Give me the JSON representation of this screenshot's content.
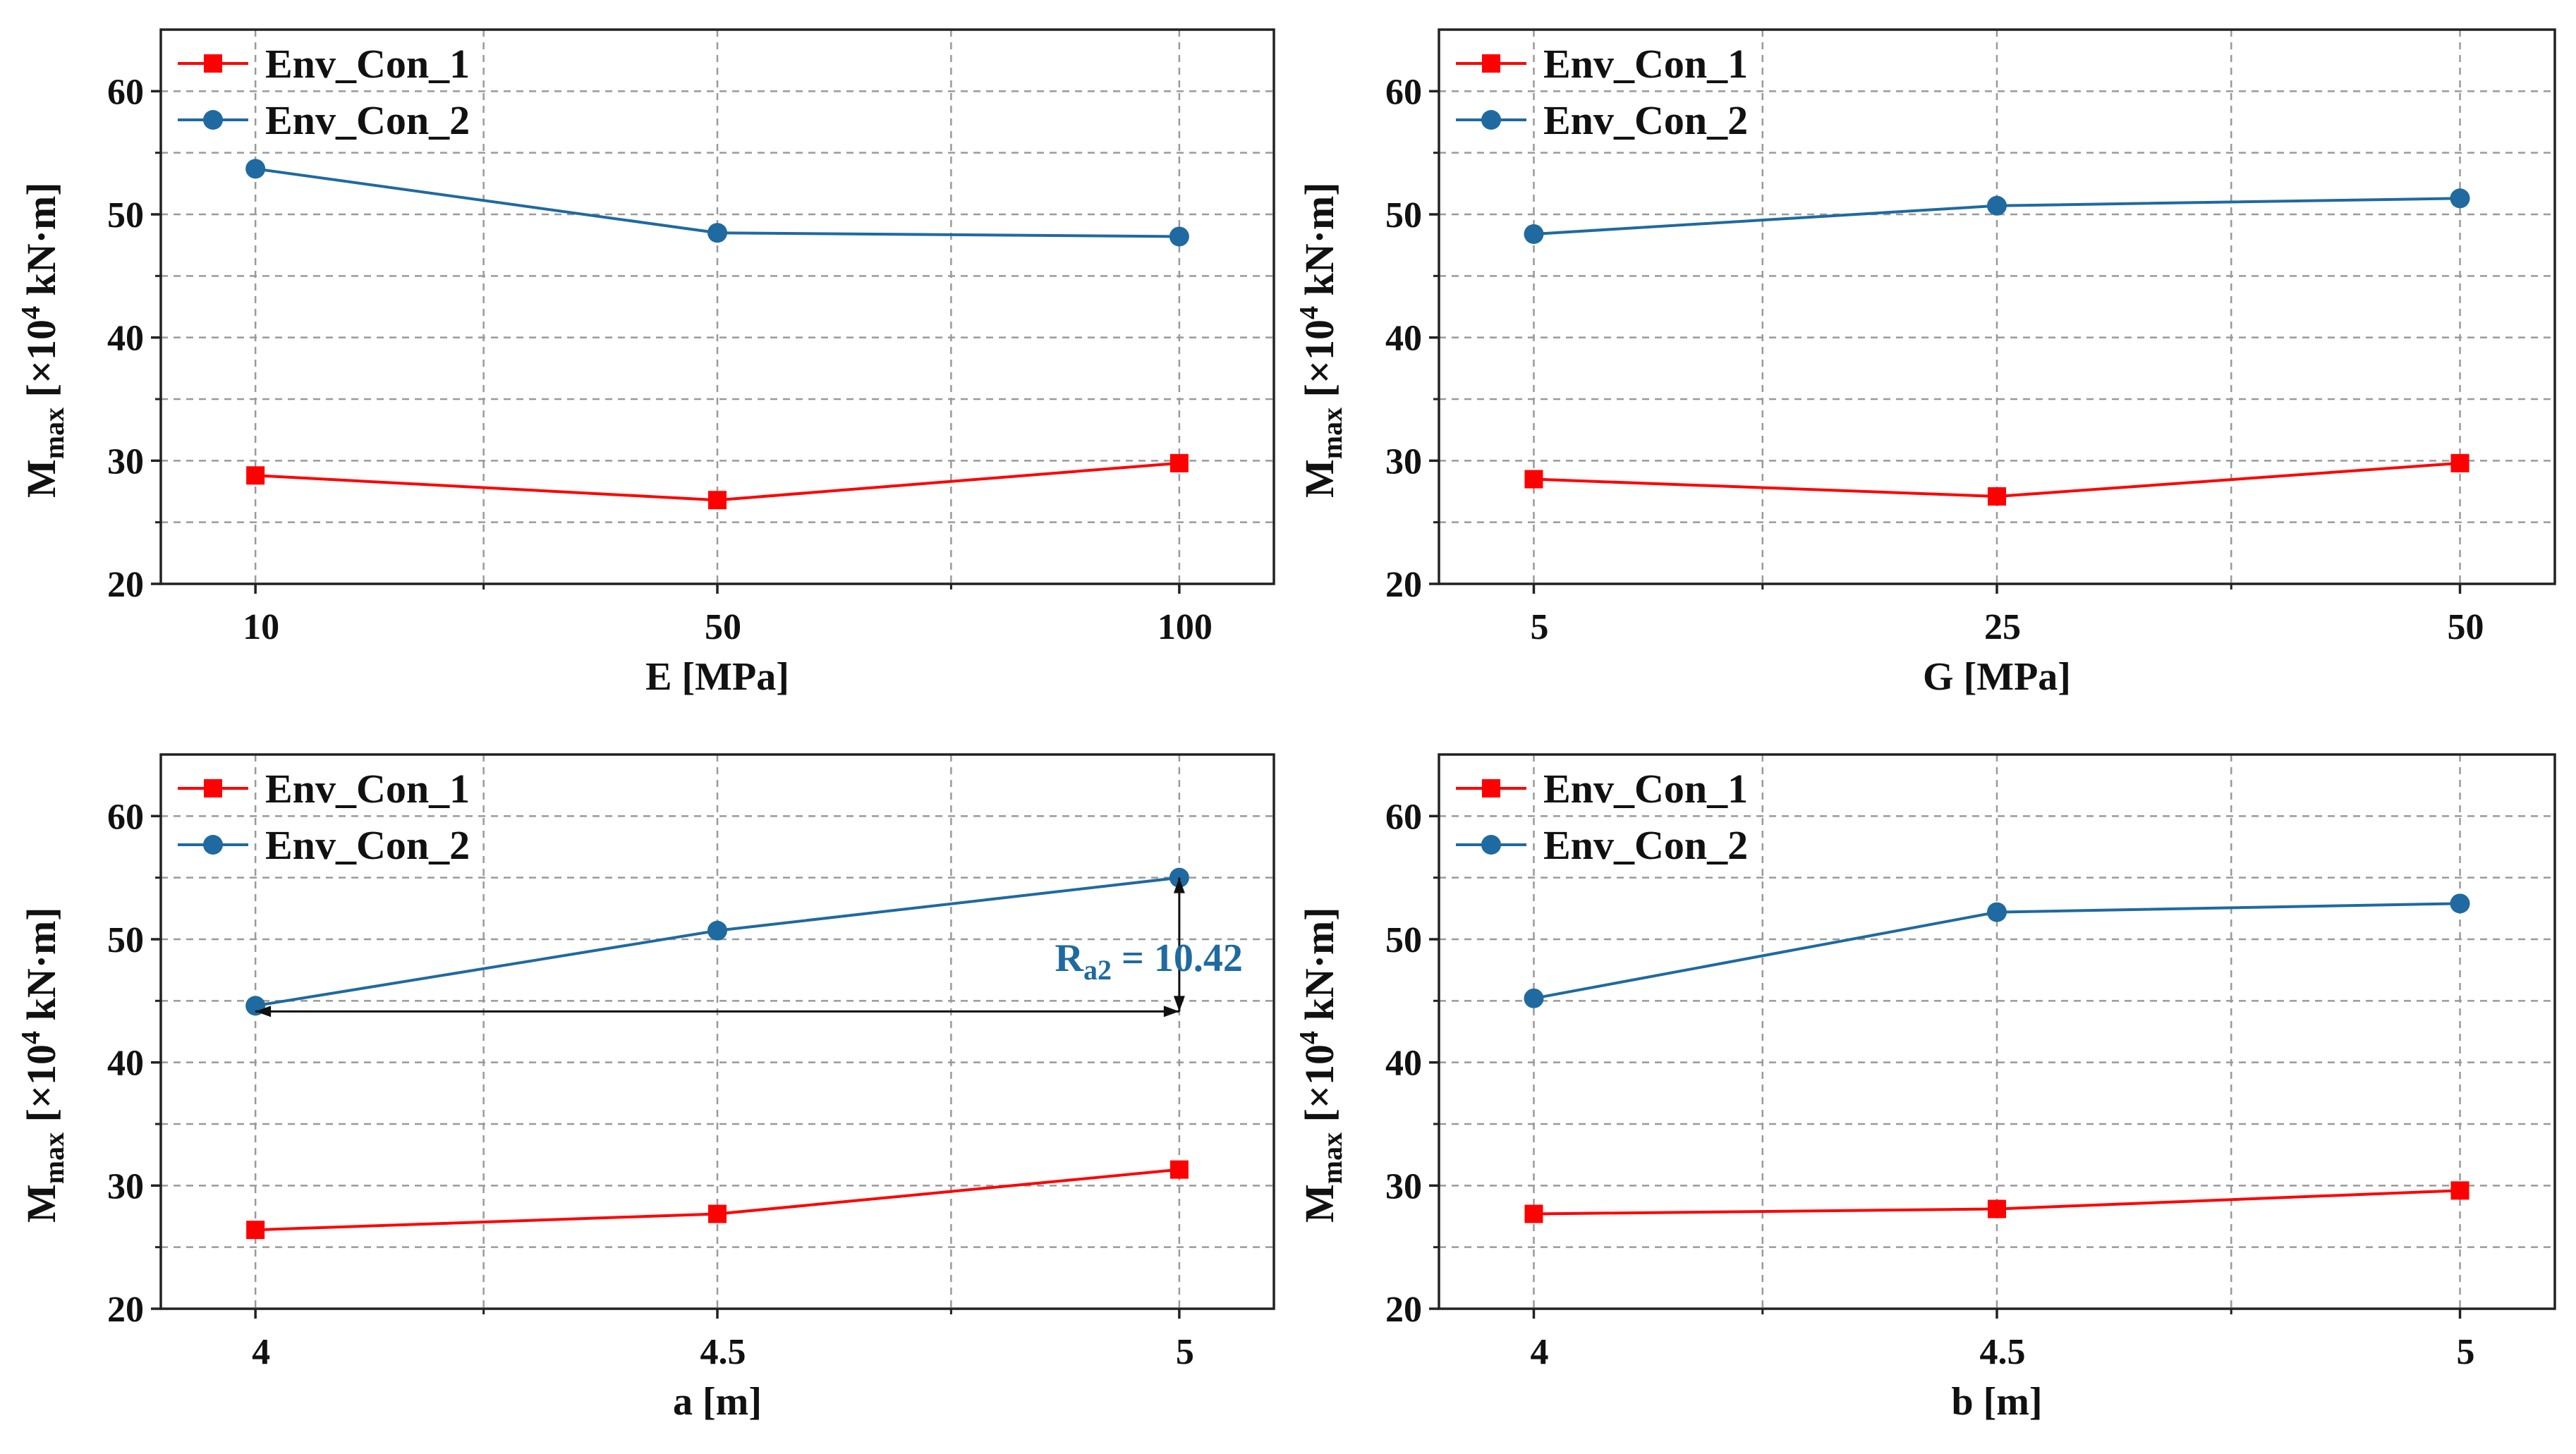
{
  "colors": {
    "series1": "#ff0000",
    "series2": "#1f6aa0",
    "grid": "#9a9a9a",
    "frame": "#222222",
    "annotation_arrow": "#111111"
  },
  "y_axis_label": {
    "base": "M",
    "subscript": "max",
    "bracket_open": "[×10",
    "superscript": "4",
    "unit_rest": " kN·m]"
  },
  "chart_data": [
    {
      "type": "line",
      "categories": [
        "10",
        "50",
        "100"
      ],
      "xlabel": "E [MPa]",
      "ylim": [
        20,
        65
      ],
      "yticks": [
        "20",
        "30",
        "40",
        "50",
        "60"
      ],
      "grid": true,
      "legend": "top-left",
      "series": [
        {
          "name": "Env_Con_1",
          "marker": "square",
          "values": [
            28.8,
            26.8,
            29.8
          ]
        },
        {
          "name": "Env_Con_2",
          "marker": "circle",
          "values": [
            53.7,
            48.5,
            48.2
          ]
        }
      ]
    },
    {
      "type": "line",
      "categories": [
        "5",
        "25",
        "50"
      ],
      "xlabel": "G [MPa]",
      "ylim": [
        20,
        65
      ],
      "yticks": [
        "20",
        "30",
        "40",
        "50",
        "60"
      ],
      "grid": true,
      "legend": "top-left",
      "series": [
        {
          "name": "Env_Con_1",
          "marker": "square",
          "values": [
            28.5,
            27.1,
            29.8
          ]
        },
        {
          "name": "Env_Con_2",
          "marker": "circle",
          "values": [
            48.4,
            50.7,
            51.3
          ]
        }
      ]
    },
    {
      "type": "line",
      "categories": [
        "4",
        "4.5",
        "5"
      ],
      "xlabel": "a [m]",
      "ylim": [
        20,
        65
      ],
      "yticks": [
        "20",
        "30",
        "40",
        "50",
        "60"
      ],
      "grid": true,
      "legend": "top-left",
      "series": [
        {
          "name": "Env_Con_1",
          "marker": "square",
          "values": [
            26.4,
            27.7,
            31.3
          ]
        },
        {
          "name": "Env_Con_2",
          "marker": "circle",
          "values": [
            44.6,
            50.7,
            55.0
          ]
        }
      ],
      "annotation": {
        "base": "R",
        "subscript": "a2",
        "rest": " = 10.42",
        "arrow_from_category": 0,
        "arrow_to_category": 2,
        "low_value": 44.6,
        "high_value": 55.0
      }
    },
    {
      "type": "line",
      "categories": [
        "4",
        "4.5",
        "5"
      ],
      "xlabel": "b [m]",
      "ylim": [
        20,
        65
      ],
      "yticks": [
        "20",
        "30",
        "40",
        "50",
        "60"
      ],
      "grid": true,
      "legend": "top-left",
      "series": [
        {
          "name": "Env_Con_1",
          "marker": "square",
          "values": [
            27.7,
            28.1,
            29.6
          ]
        },
        {
          "name": "Env_Con_2",
          "marker": "circle",
          "values": [
            45.2,
            52.2,
            52.9
          ]
        }
      ]
    }
  ]
}
